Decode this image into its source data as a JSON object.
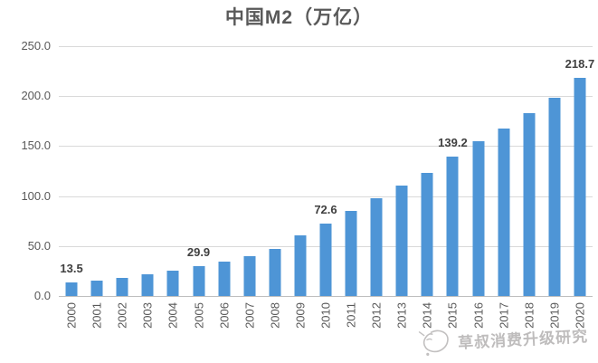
{
  "title": "中国M2（万亿）",
  "watermark": {
    "text": "草叔消费升级研究",
    "icon": "doodle-sketch-icon"
  },
  "colors": {
    "bar": "#4e95d6",
    "gridline": "#d9d9d9",
    "axis_line": "#bfbfbf",
    "axis_text": "#595959",
    "data_label": "#3f3f3f",
    "title": "#595959",
    "watermark": "#b3b1b1"
  },
  "chart_data": {
    "type": "bar",
    "title": "中国M2（万亿）",
    "categories": [
      "2000",
      "2001",
      "2002",
      "2003",
      "2004",
      "2005",
      "2006",
      "2007",
      "2008",
      "2009",
      "2010",
      "2011",
      "2012",
      "2013",
      "2014",
      "2015",
      "2016",
      "2017",
      "2018",
      "2019",
      "2020"
    ],
    "values": [
      13.5,
      15.8,
      18.5,
      22.1,
      25.4,
      29.9,
      34.6,
      40.3,
      47.5,
      60.6,
      72.6,
      85.2,
      97.4,
      110.7,
      122.8,
      139.2,
      155.0,
      167.7,
      182.7,
      198.6,
      218.7
    ],
    "data_labels": {
      "2000": "13.5",
      "2005": "29.9",
      "2010": "72.6",
      "2015": "139.2",
      "2020": "218.7"
    },
    "xlabel": "",
    "ylabel": "",
    "ylim": [
      0,
      250
    ],
    "yticks": [
      250,
      200,
      150,
      100,
      50,
      0
    ],
    "ytick_labels": [
      "250.0",
      "200.0",
      "150.0",
      "100.0",
      "50.0",
      "0.0"
    ],
    "grid": true,
    "legend": null
  }
}
